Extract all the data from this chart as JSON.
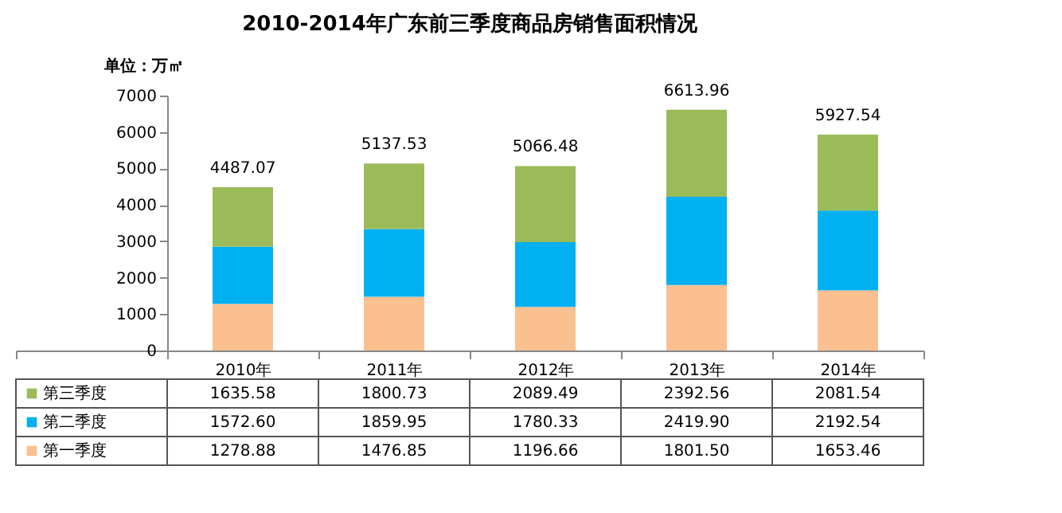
{
  "chart_data": {
    "type": "bar",
    "title": "2010-2014年广东前三季度商品房销售面积情况",
    "ylabel": "单位：万㎡",
    "categories": [
      "2010年",
      "2011年",
      "2012年",
      "2013年",
      "2014年"
    ],
    "stacked": true,
    "legend": "bottom",
    "ylim": [
      0,
      7000
    ],
    "yticks": [
      0,
      1000,
      2000,
      3000,
      4000,
      5000,
      6000,
      7000
    ],
    "series": [
      {
        "name": "第一季度",
        "color": "#fac090",
        "values": [
          1278.88,
          1476.85,
          1196.66,
          1801.5,
          1653.46
        ],
        "value_labels": [
          "1278.88",
          "1476.85",
          "1196.66",
          "1801.50",
          "1653.46"
        ]
      },
      {
        "name": "第二季度",
        "color": "#00b0f0",
        "values": [
          1572.6,
          1859.95,
          1780.33,
          2419.9,
          2192.54
        ],
        "value_labels": [
          "1572.60",
          "1859.95",
          "1780.33",
          "2419.90",
          "2192.54"
        ]
      },
      {
        "name": "第三季度",
        "color": "#9bbb59",
        "values": [
          1635.58,
          1800.73,
          2089.49,
          2392.56,
          2081.54
        ],
        "value_labels": [
          "1635.58",
          "1800.73",
          "2089.49",
          "2392.56",
          "2081.54"
        ]
      }
    ],
    "totals": [
      "4487.07",
      "5137.53",
      "5066.48",
      "6613.96",
      "5927.54"
    ]
  }
}
